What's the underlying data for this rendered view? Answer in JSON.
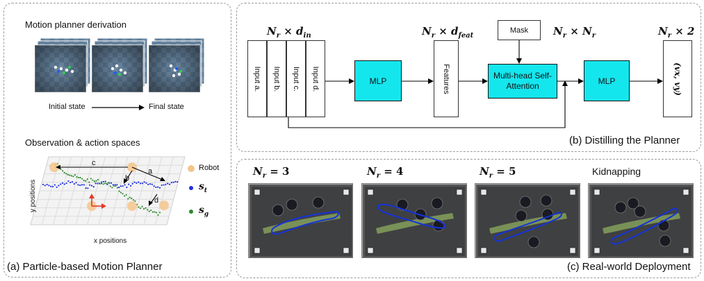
{
  "panel_a": {
    "caption": "(a) Particle-based Motion Planner",
    "derivation_title": "Motion planner derivation",
    "initial_state": "Initial state",
    "final_state": "Final state",
    "obs_title": "Observation & action spaces",
    "xlabel": "x positions",
    "ylabel": "y positions",
    "arrow_labels": [
      "c",
      "a",
      "b",
      "d"
    ],
    "legend": [
      {
        "label": "Robot",
        "color": "#f4c58c"
      },
      {
        "label": "s",
        "sub": "t",
        "color": "#1f2ee0"
      },
      {
        "label": "s",
        "sub": "g",
        "color": "#2e8b2e"
      }
    ]
  },
  "panel_b": {
    "caption": "(b) Distilling the Planner",
    "dim_in": {
      "base": "N",
      "sub1": "r",
      "mid": " × d",
      "sub2": "in"
    },
    "dim_feat": {
      "base": "N",
      "sub1": "r",
      "mid": " × d",
      "sub2": "feat"
    },
    "dim_mask": {
      "base": "N",
      "sub1": "r",
      "mid": " × N",
      "sub2": "r"
    },
    "dim_out": {
      "base": "N",
      "sub1": "r",
      "mid": " × 2",
      "sub2": ""
    },
    "inputs": [
      "Input a.",
      "Input b.",
      "Input c.",
      "Input d."
    ],
    "mlp1": "MLP",
    "features": "Features",
    "mask": "Mask",
    "attention": "Multi-head Self-Attention",
    "mlp2": "MLP",
    "output": "(vx, vy)",
    "accent_color": "#14e6ee"
  },
  "panel_c": {
    "caption": "(c) Real-world Deployment",
    "photos": [
      {
        "title_base": "N",
        "title_sub": "r",
        "title_rest": " = 3"
      },
      {
        "title_base": "N",
        "title_sub": "r",
        "title_rest": " = 4"
      },
      {
        "title_base": "N",
        "title_sub": "r",
        "title_rest": " = 5"
      },
      {
        "title_base": "",
        "title_sub": "",
        "title_rest": "Kidnapping"
      }
    ]
  }
}
